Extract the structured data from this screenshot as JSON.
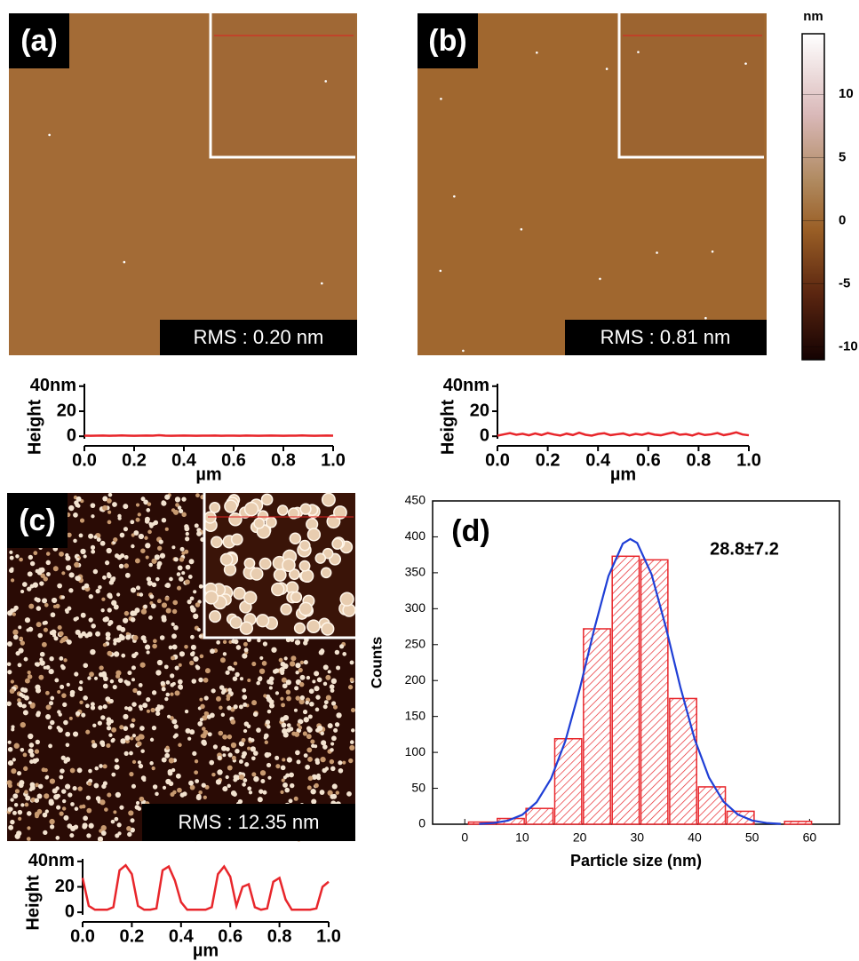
{
  "images": [
    {
      "label": "(a)",
      "rms": "RMS : 0.20 nm"
    },
    {
      "label": "(b)",
      "rms": "RMS : 0.81 nm"
    },
    {
      "label": "(c)",
      "rms": "RMS : 12.35 nm"
    }
  ],
  "chart_data": [
    {
      "type": "line",
      "xlabel": "µm",
      "ylabel": "Height",
      "x": [
        0,
        0.025,
        0.05,
        0.075,
        0.1,
        0.125,
        0.15,
        0.175,
        0.2,
        0.225,
        0.25,
        0.275,
        0.3,
        0.325,
        0.35,
        0.375,
        0.4,
        0.425,
        0.45,
        0.475,
        0.5,
        0.525,
        0.55,
        0.575,
        0.6,
        0.625,
        0.65,
        0.675,
        0.7,
        0.725,
        0.75,
        0.775,
        0.8,
        0.825,
        0.85,
        0.875,
        0.9,
        0.925,
        0.95,
        0.975,
        1.0
      ],
      "series": [
        {
          "color": "#e8262b",
          "values": [
            0.5,
            0.4,
            0.5,
            0.6,
            0.4,
            0.5,
            0.7,
            0.5,
            0.4,
            0.5,
            0.6,
            0.5,
            0.8,
            0.5,
            0.4,
            0.5,
            0.6,
            0.5,
            0.4,
            0.5,
            0.5,
            0.6,
            0.4,
            0.5,
            0.5,
            0.4,
            0.6,
            0.5,
            0.4,
            0.5,
            0.6,
            0.5,
            0.4,
            0.5,
            0.5,
            0.7,
            0.5,
            0.4,
            0.5,
            0.6,
            0.5
          ]
        }
      ],
      "xlim": [
        0,
        1
      ],
      "ylim": [
        -2,
        42
      ],
      "xticks": [
        {
          "value": 0,
          "label": "0.0"
        },
        {
          "value": 0.2,
          "label": "0.2"
        },
        {
          "value": 0.4,
          "label": "0.4"
        },
        {
          "value": 0.6,
          "label": "0.6"
        },
        {
          "value": 0.8,
          "label": "0.8"
        },
        {
          "value": 1,
          "label": "1.0"
        }
      ],
      "yticks": [
        0,
        20,
        {
          "value": 40,
          "label": "40nm"
        }
      ]
    },
    {
      "type": "line",
      "xlabel": "µm",
      "ylabel": "Height",
      "x": [
        0,
        0.025,
        0.05,
        0.075,
        0.1,
        0.125,
        0.15,
        0.175,
        0.2,
        0.225,
        0.25,
        0.275,
        0.3,
        0.325,
        0.35,
        0.375,
        0.4,
        0.425,
        0.45,
        0.475,
        0.5,
        0.525,
        0.55,
        0.575,
        0.6,
        0.625,
        0.65,
        0.675,
        0.7,
        0.725,
        0.75,
        0.775,
        0.8,
        0.825,
        0.85,
        0.875,
        0.9,
        0.925,
        0.95,
        0.975,
        1.0
      ],
      "series": [
        {
          "color": "#e8262b",
          "values": [
            0.5,
            1.5,
            2.5,
            1.2,
            2.0,
            0.8,
            2.2,
            1.0,
            2.6,
            1.4,
            0.6,
            2.1,
            1.0,
            2.8,
            1.2,
            0.5,
            1.8,
            2.4,
            0.9,
            1.6,
            2.2,
            0.7,
            1.9,
            1.1,
            2.5,
            1.3,
            0.8,
            2.0,
            3.0,
            1.2,
            1.7,
            0.6,
            2.3,
            1.0,
            1.5,
            2.6,
            0.9,
            1.8,
            3.1,
            1.4,
            0.8
          ]
        }
      ],
      "xlim": [
        0,
        1
      ],
      "ylim": [
        -2,
        42
      ],
      "xticks": [
        {
          "value": 0,
          "label": "0.0"
        },
        {
          "value": 0.2,
          "label": "0.2"
        },
        {
          "value": 0.4,
          "label": "0.4"
        },
        {
          "value": 0.6,
          "label": "0.6"
        },
        {
          "value": 0.8,
          "label": "0.8"
        },
        {
          "value": 1,
          "label": "1.0"
        }
      ],
      "yticks": [
        0,
        20,
        {
          "value": 40,
          "label": "40nm"
        }
      ]
    },
    {
      "type": "line",
      "xlabel": "µm",
      "ylabel": "Height",
      "x": [
        0,
        0.025,
        0.05,
        0.075,
        0.1,
        0.125,
        0.15,
        0.175,
        0.2,
        0.225,
        0.25,
        0.275,
        0.3,
        0.325,
        0.35,
        0.375,
        0.4,
        0.425,
        0.45,
        0.475,
        0.5,
        0.525,
        0.55,
        0.575,
        0.6,
        0.625,
        0.65,
        0.675,
        0.7,
        0.725,
        0.75,
        0.775,
        0.8,
        0.825,
        0.85,
        0.875,
        0.9,
        0.925,
        0.95,
        0.975,
        1.0
      ],
      "series": [
        {
          "color": "#e8262b",
          "values": [
            27,
            5,
            2,
            2,
            2,
            4,
            33,
            37,
            30,
            5,
            2,
            2,
            3,
            33,
            36,
            25,
            8,
            2,
            2,
            2,
            2,
            4,
            30,
            36,
            28,
            5,
            20,
            22,
            4,
            2,
            3,
            24,
            27,
            10,
            2,
            2,
            2,
            2,
            3,
            20,
            24
          ]
        }
      ],
      "xlim": [
        0,
        1
      ],
      "ylim": [
        -2,
        42
      ],
      "xticks": [
        {
          "value": 0,
          "label": "0.0"
        },
        {
          "value": 0.2,
          "label": "0.2"
        },
        {
          "value": 0.4,
          "label": "0.4"
        },
        {
          "value": 0.6,
          "label": "0.6"
        },
        {
          "value": 0.8,
          "label": "0.8"
        },
        {
          "value": 1,
          "label": "1.0"
        }
      ],
      "yticks": [
        0,
        20,
        {
          "value": 40,
          "label": "40nm"
        }
      ]
    },
    {
      "type": "histogram",
      "panel_label": "(d)",
      "annotation": "28.8±7.2",
      "xlabel": "Particle size (nm)",
      "ylabel": "Counts",
      "bins": [
        0.5,
        5.5,
        10.5,
        15.5,
        20.5,
        25.5,
        30.5,
        35.5,
        40.5,
        45.5,
        50.5,
        55.5,
        60.5
      ],
      "values": [
        3,
        8,
        22,
        119,
        272,
        373,
        368,
        175,
        52,
        18,
        0,
        4
      ],
      "color": "#e8262b",
      "fit": {
        "color": "#1f3fd6",
        "x": [
          2.5,
          5,
          7.5,
          10,
          12.5,
          15,
          17.5,
          20,
          22.5,
          25,
          27.5,
          28.8,
          30,
          32.5,
          35,
          37.5,
          40,
          42.5,
          45,
          47.5,
          50,
          52.5,
          55
        ],
        "values": [
          0.5,
          1.7,
          5.0,
          13.1,
          30.6,
          63.2,
          115.8,
          188.1,
          270.7,
          345.4,
          390.6,
          397,
          391.5,
          347.9,
          273.9,
          191.3,
          118.4,
          64.9,
          31.6,
          13.6,
          5.2,
          1.8,
          0.5
        ]
      },
      "xlim": [
        -5.6,
        65.2
      ],
      "ylim": [
        0,
        450
      ],
      "xticks": [
        0,
        10,
        20,
        30,
        40,
        50,
        60
      ],
      "yticks": [
        0,
        50,
        100,
        150,
        200,
        250,
        300,
        350,
        400,
        450
      ]
    },
    {
      "type": "colorbar",
      "title": "nm",
      "ylim": [
        -11,
        14.8
      ],
      "yticks": [
        10,
        5,
        0,
        -5,
        -10
      ]
    }
  ]
}
